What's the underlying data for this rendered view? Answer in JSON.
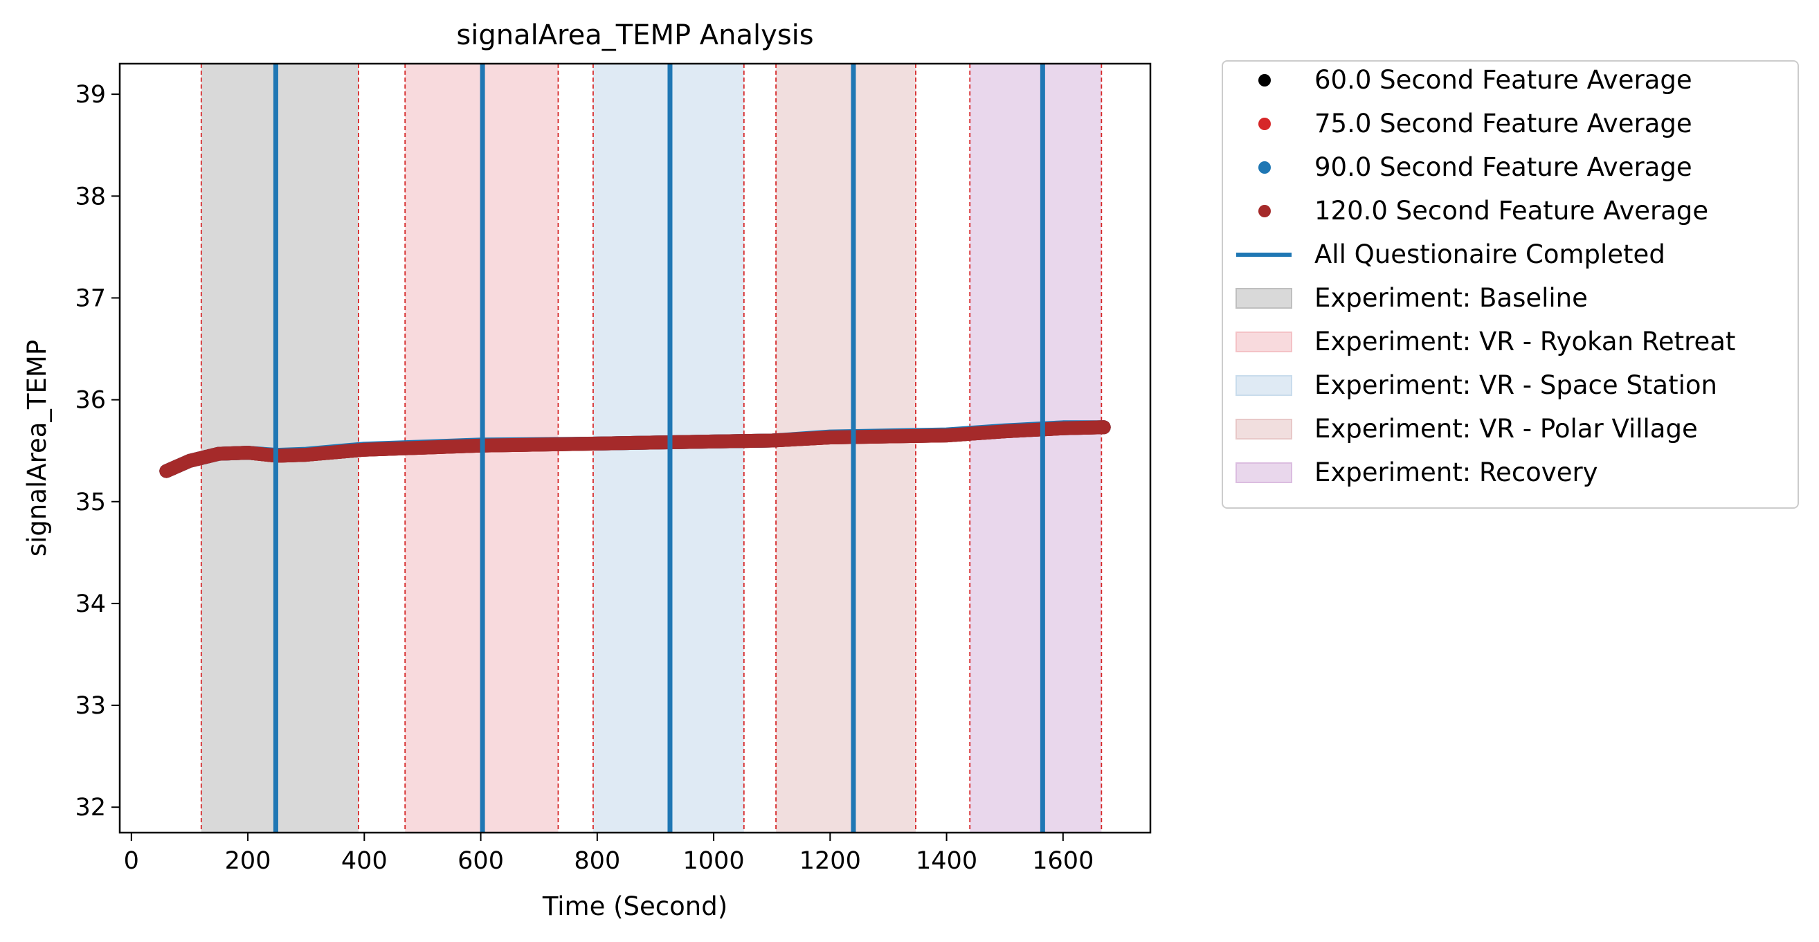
{
  "chart_data": {
    "type": "line",
    "title": "signalArea_TEMP Analysis",
    "xlabel": "Time (Second)",
    "ylabel": "signalArea_TEMP",
    "xlim": [
      -20,
      1750
    ],
    "ylim": [
      31.75,
      39.3
    ],
    "xticks": [
      0,
      200,
      400,
      600,
      800,
      1000,
      1200,
      1400,
      1600
    ],
    "yticks": [
      32,
      33,
      34,
      35,
      36,
      37,
      38,
      39
    ],
    "grid": false,
    "legend_position": "outside right, top",
    "series": [
      {
        "name": "60.0 Second Feature Average",
        "color": "#000000",
        "x": [
          60,
          100,
          150,
          200,
          250,
          300,
          400,
          600,
          800,
          1000,
          1100,
          1200,
          1400,
          1500,
          1600,
          1670
        ],
        "y": [
          35.3,
          35.4,
          35.47,
          35.48,
          35.45,
          35.46,
          35.51,
          35.55,
          35.57,
          35.59,
          35.6,
          35.63,
          35.65,
          35.69,
          35.72,
          35.73
        ]
      },
      {
        "name": "75.0 Second Feature Average",
        "color": "#d62728",
        "x": [
          60,
          100,
          150,
          200,
          250,
          300,
          400,
          600,
          800,
          1000,
          1100,
          1200,
          1400,
          1500,
          1600,
          1670
        ],
        "y": [
          35.3,
          35.4,
          35.47,
          35.48,
          35.45,
          35.46,
          35.51,
          35.55,
          35.57,
          35.59,
          35.6,
          35.63,
          35.65,
          35.69,
          35.72,
          35.73
        ]
      },
      {
        "name": "90.0 Second Feature Average",
        "color": "#1f77b4",
        "x": [
          60,
          100,
          150,
          200,
          250,
          300,
          400,
          600,
          800,
          1000,
          1100,
          1200,
          1400,
          1500,
          1600,
          1670
        ],
        "y": [
          35.3,
          35.4,
          35.47,
          35.48,
          35.46,
          35.47,
          35.52,
          35.56,
          35.57,
          35.59,
          35.6,
          35.64,
          35.66,
          35.7,
          35.73,
          35.73
        ]
      },
      {
        "name": "120.0 Second Feature Average",
        "color": "#a52a2a",
        "x": [
          60,
          100,
          150,
          200,
          250,
          300,
          400,
          600,
          800,
          1000,
          1100,
          1200,
          1400,
          1500,
          1600,
          1670
        ],
        "y": [
          35.3,
          35.4,
          35.47,
          35.48,
          35.45,
          35.46,
          35.51,
          35.55,
          35.57,
          35.59,
          35.6,
          35.63,
          35.65,
          35.69,
          35.72,
          35.73
        ]
      }
    ],
    "questionnaire_completed": {
      "name": "All Questionaire Completed",
      "color": "#1f77b4",
      "x": [
        248,
        603,
        925,
        1240,
        1565
      ]
    },
    "phases": [
      {
        "name": "Experiment: Baseline",
        "start": 120,
        "end": 390,
        "color": "#bfbfbf"
      },
      {
        "name": "Experiment: VR - Ryokan Retreat",
        "start": 470,
        "end": 733,
        "color": "#f4c2c6"
      },
      {
        "name": "Experiment: VR - Space Station",
        "start": 793,
        "end": 1052,
        "color": "#c9dcec"
      },
      {
        "name": "Experiment: VR - Polar Village",
        "start": 1107,
        "end": 1347,
        "color": "#e8c8c8"
      },
      {
        "name": "Experiment: Recovery",
        "start": 1440,
        "end": 1666,
        "color": "#dbbde0"
      }
    ],
    "phase_edge_color": "#d62728"
  }
}
